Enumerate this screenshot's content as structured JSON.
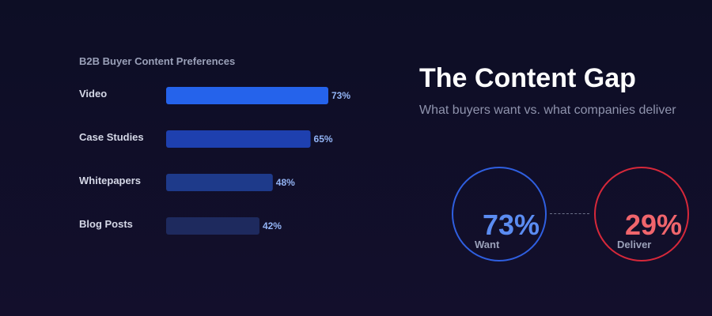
{
  "chart_data": {
    "type": "bar",
    "orientation": "horizontal",
    "title": "B2B Buyer Content Preferences",
    "categories": [
      "Video",
      "Case Studies",
      "Whitepapers",
      "Blog Posts"
    ],
    "values": [
      73,
      65,
      48,
      42
    ],
    "value_labels": [
      "73%",
      "65%",
      "48%",
      "42%"
    ],
    "unit": "%",
    "bar_colors": [
      "#2563eb",
      "#1e40af",
      "#1e3a8a",
      "#1e2a5e"
    ],
    "label_color": "#93b4f5"
  },
  "hero": {
    "title": "The Content Gap",
    "subtitle": "What buyers want vs. what companies deliver"
  },
  "comparison": {
    "want": {
      "value": "73%",
      "label": "Want",
      "color": "#2f5fe0"
    },
    "deliver": {
      "value": "29%",
      "label": "Deliver",
      "color": "#d6283a"
    }
  }
}
